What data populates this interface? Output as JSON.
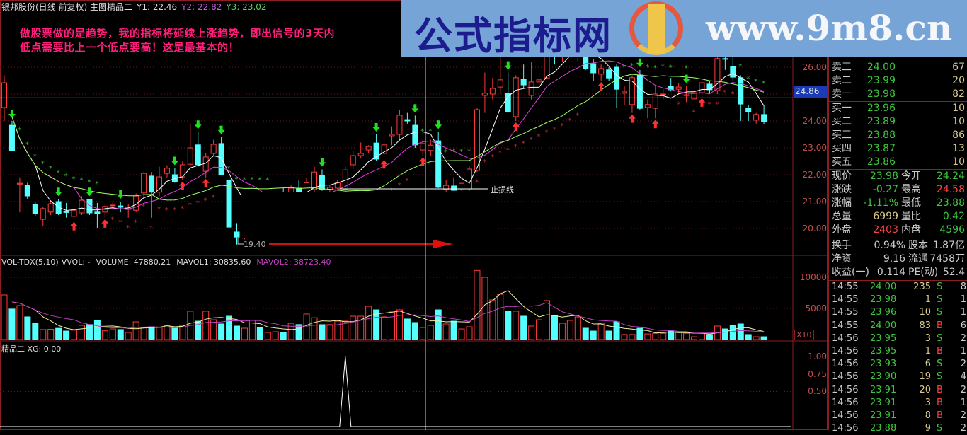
{
  "header": {
    "title": "银邦股份(日线 前复权) 主图精品二",
    "y1": "Y1: 22.46",
    "y2": "Y2: 22.82",
    "y3": "Y3: 23.02",
    "colors": {
      "y1": "#dddddd",
      "y2": "#c060d0",
      "y3": "#60d060"
    }
  },
  "annotation": {
    "line1": "做股票做的是趋势，我的指标将延续上涨趋势，即出信号的3天内",
    "line2": "低点需要比上一个低点要高！这是最基本的！",
    "color": "#ff1f7a"
  },
  "banner": {
    "site_name": "公式指标网",
    "url": "www.9m8.cn",
    "logo_text": "www.9m8.cn",
    "background": "#76a4d7"
  },
  "main_chart": {
    "price_axis": [
      "26.00",
      "24.00",
      "23.00",
      "22.00",
      "21.00",
      "20.00"
    ],
    "crosshair_price": "24.86",
    "stop_loss_label": "止损线",
    "low_label": "19.40"
  },
  "volume_panel": {
    "name": "VOL-TDX(5,10)",
    "vvol": "VVOL: -",
    "volume": "VOLUME: 47880.21",
    "mavol1": "MAVOL1: 30835.60",
    "mavol2": "MAVOL2: 38723.40",
    "axis": [
      "10000",
      "5000"
    ],
    "multiplier": "X10"
  },
  "indicator_panel": {
    "name": "精品二",
    "xg": "XG: 0.00",
    "axis": [
      "1.00",
      "0.75",
      "0.50"
    ]
  },
  "quote": {
    "asks": [
      {
        "label": "卖三",
        "price": "24.00",
        "vol": "67"
      },
      {
        "label": "卖二",
        "price": "23.99",
        "vol": "20"
      },
      {
        "label": "卖一",
        "price": "23.98",
        "vol": "82"
      }
    ],
    "bids": [
      {
        "label": "买一",
        "price": "23.96",
        "vol": "10"
      },
      {
        "label": "买二",
        "price": "23.89",
        "vol": "10"
      },
      {
        "label": "买三",
        "price": "23.88",
        "vol": "86"
      },
      {
        "label": "买四",
        "price": "23.87",
        "vol": "13"
      },
      {
        "label": "买五",
        "price": "23.86",
        "vol": "10"
      }
    ],
    "stats": [
      {
        "l1": "现价",
        "v1": "23.98",
        "c1": "g",
        "l2": "今开",
        "v2": "24.24",
        "c2": "g"
      },
      {
        "l1": "涨跌",
        "v1": "-0.27",
        "c1": "g",
        "l2": "最高",
        "v2": "24.58",
        "c2": "r"
      },
      {
        "l1": "涨幅",
        "v1": "-1.11%",
        "c1": "g",
        "l2": "最低",
        "v2": "23.88",
        "c2": "g"
      },
      {
        "l1": "总量",
        "v1": "6999",
        "c1": "y",
        "l2": "量比",
        "v2": "0.42",
        "c2": "g"
      },
      {
        "l1": "外盘",
        "v1": "2403",
        "c1": "r",
        "l2": "内盘",
        "v2": "4596",
        "c2": "g"
      }
    ],
    "fundamentals": [
      {
        "l1": "换手",
        "v1": "0.94%",
        "l2": "股本",
        "v2": "1.87亿"
      },
      {
        "l1": "净资",
        "v1": "9.16",
        "l2": "流通",
        "v2": "7458万"
      },
      {
        "l1": "收益(一)",
        "v1": "0.114",
        "l2": "PE(动)",
        "v2": "52.4"
      }
    ]
  },
  "ticks": [
    {
      "time": "14:55",
      "price": "24.00",
      "vol": "235",
      "side": "S",
      "n": "8"
    },
    {
      "time": "14:55",
      "price": "23.98",
      "vol": "1",
      "side": "S",
      "n": "1"
    },
    {
      "time": "14:55",
      "price": "23.96",
      "vol": "10",
      "side": "S",
      "n": "1"
    },
    {
      "time": "14:55",
      "price": "24.00",
      "vol": "83",
      "side": "B",
      "n": "6"
    },
    {
      "time": "14:56",
      "price": "23.95",
      "vol": "3",
      "side": "S",
      "n": "2"
    },
    {
      "time": "14:56",
      "price": "23.95",
      "vol": "1",
      "side": "B",
      "n": "1"
    },
    {
      "time": "14:56",
      "price": "23.93",
      "vol": "6",
      "side": "S",
      "n": "2"
    },
    {
      "time": "14:56",
      "price": "23.90",
      "vol": "19",
      "side": "S",
      "n": "4"
    },
    {
      "time": "14:56",
      "price": "23.91",
      "vol": "20",
      "side": "B",
      "n": "2"
    },
    {
      "time": "14:56",
      "price": "23.91",
      "vol": "3",
      "side": "B",
      "n": "1"
    },
    {
      "time": "14:56",
      "price": "23.91",
      "vol": "8",
      "side": "B",
      "n": "2"
    },
    {
      "time": "14:56",
      "price": "23.88",
      "vol": "9",
      "side": "S",
      "n": "2"
    }
  ],
  "colors": {
    "up": "#ff3b3b",
    "down": "#54ffff",
    "ma_short": "#ffffff",
    "ma_mid": "#e040e0",
    "ma_long": "#a0ff60",
    "grid": "#8b1e1e",
    "buy_signal": "#ff3030",
    "sell_signal": "#20e020"
  },
  "chart_data": {
    "type": "candlestick",
    "price_range": [
      19.0,
      27.5
    ],
    "ohlc": [
      [
        24.5,
        25.7,
        24.0,
        25.42
      ],
      [
        23.84,
        24.0,
        22.89,
        22.89
      ],
      [
        21.65,
        21.9,
        20.6,
        21.68
      ],
      [
        21.6,
        21.7,
        21.1,
        21.21
      ],
      [
        20.89,
        21.0,
        20.45,
        20.55
      ],
      [
        20.34,
        20.8,
        20.1,
        20.74
      ],
      [
        20.61,
        21.05,
        20.5,
        20.92
      ],
      [
        21.0,
        21.1,
        20.5,
        20.55
      ],
      [
        20.62,
        20.95,
        20.4,
        20.6
      ],
      [
        20.45,
        20.75,
        20.3,
        20.68
      ],
      [
        20.58,
        21.2,
        20.5,
        21.05
      ],
      [
        21.08,
        21.1,
        20.5,
        20.58
      ],
      [
        20.61,
        20.95,
        20.0,
        20.55
      ],
      [
        20.61,
        20.9,
        20.4,
        20.82
      ],
      [
        20.87,
        21.0,
        20.7,
        20.87
      ],
      [
        20.84,
        21.0,
        20.6,
        20.79
      ],
      [
        20.71,
        20.9,
        20.4,
        20.79
      ],
      [
        20.68,
        21.3,
        20.6,
        21.21
      ],
      [
        21.32,
        22.1,
        21.2,
        22.05
      ],
      [
        21.95,
        22.1,
        20.4,
        21.35
      ],
      [
        21.35,
        22.3,
        21.2,
        21.92
      ],
      [
        22.05,
        22.35,
        21.9,
        22.24
      ],
      [
        22.0,
        22.25,
        21.7,
        21.74
      ],
      [
        21.92,
        22.5,
        21.8,
        22.37
      ],
      [
        22.39,
        23.9,
        22.3,
        23.0
      ],
      [
        23.11,
        23.6,
        22.3,
        22.37
      ],
      [
        22.13,
        22.8,
        21.9,
        22.66
      ],
      [
        22.79,
        23.3,
        22.7,
        23.13
      ],
      [
        23.16,
        23.4,
        22.0,
        22.0
      ],
      [
        21.79,
        21.9,
        20.05,
        20.05
      ],
      [
        19.87,
        20.2,
        19.4,
        19.68
      ],
      [
        19.7,
        20.3,
        19.6,
        20.2
      ],
      [
        20.2,
        20.8,
        20.0,
        20.6
      ],
      [
        20.6,
        21.0,
        20.3,
        20.5
      ],
      [
        20.5,
        21.1,
        20.4,
        20.9
      ],
      [
        20.9,
        21.3,
        20.7,
        21.2
      ],
      [
        21.2,
        21.5,
        20.9,
        21.0
      ],
      [
        21.0,
        21.6,
        20.9,
        21.5
      ],
      [
        21.5,
        21.8,
        21.2,
        21.3
      ],
      [
        21.3,
        21.9,
        21.2,
        21.7
      ],
      [
        21.45,
        22.3,
        21.3,
        22.1
      ],
      [
        21.98,
        22.2,
        21.4,
        21.45
      ],
      [
        21.45,
        21.6,
        21.3,
        21.53
      ],
      [
        21.5,
        21.8,
        21.4,
        21.7
      ],
      [
        21.45,
        22.3,
        21.4,
        22.18
      ],
      [
        22.37,
        22.9,
        22.2,
        22.71
      ],
      [
        22.71,
        23.2,
        22.6,
        22.79
      ],
      [
        22.92,
        23.1,
        22.8,
        23.05
      ],
      [
        23.18,
        23.5,
        22.5,
        22.58
      ],
      [
        22.79,
        23.3,
        22.6,
        23.11
      ],
      [
        23.45,
        23.8,
        23.1,
        23.5
      ],
      [
        23.5,
        24.4,
        23.3,
        24.21
      ],
      [
        24.05,
        24.3,
        23.9,
        24.0
      ],
      [
        23.84,
        24.2,
        23.0,
        23.11
      ],
      [
        22.92,
        23.3,
        22.7,
        23.16
      ],
      [
        22.9,
        23.3,
        22.7,
        23.1
      ],
      [
        23.26,
        23.6,
        21.5,
        21.53
      ],
      [
        21.45,
        21.8,
        21.3,
        21.6
      ],
      [
        21.58,
        21.9,
        21.4,
        21.42
      ],
      [
        21.47,
        21.7,
        21.4,
        21.68
      ],
      [
        21.47,
        22.3,
        21.4,
        22.21
      ],
      [
        22.16,
        24.5,
        22.1,
        24.42
      ],
      [
        24.95,
        25.8,
        24.3,
        25.03
      ],
      [
        25.0,
        25.6,
        24.8,
        25.21
      ],
      [
        25.26,
        26.6,
        25.0,
        25.53
      ],
      [
        25.03,
        25.8,
        24.3,
        24.34
      ],
      [
        24.16,
        25.7,
        24.0,
        25.61
      ],
      [
        25.55,
        26.1,
        25.2,
        25.34
      ],
      [
        24.95,
        26.2,
        24.8,
        25.45
      ],
      [
        25.45,
        26.0,
        25.2,
        25.53
      ],
      [
        25.6,
        26.6,
        25.5,
        26.4
      ],
      [
        26.8,
        27.0,
        26.1,
        26.4
      ],
      [
        26.4,
        27.0,
        26.2,
        26.8
      ],
      [
        26.8,
        27.2,
        26.5,
        27.0
      ],
      [
        26.5,
        27.1,
        26.2,
        26.9
      ],
      [
        26.4,
        26.9,
        25.9,
        25.95
      ],
      [
        26.13,
        26.3,
        25.5,
        25.79
      ],
      [
        25.74,
        26.1,
        25.5,
        25.95
      ],
      [
        25.9,
        26.0,
        25.5,
        25.6
      ],
      [
        26.0,
        26.1,
        24.5,
        25.18
      ],
      [
        25.03,
        25.3,
        24.6,
        25.08
      ],
      [
        24.61,
        25.7,
        24.3,
        25.61
      ],
      [
        25.71,
        25.9,
        24.4,
        24.47
      ],
      [
        24.5,
        24.8,
        24.1,
        24.61
      ],
      [
        24.47,
        25.3,
        24.1,
        25.0
      ],
      [
        24.98,
        25.2,
        24.8,
        25.0
      ],
      [
        25.29,
        25.6,
        25.1,
        25.16
      ],
      [
        25.18,
        25.4,
        25.0,
        25.26
      ],
      [
        24.95,
        25.3,
        24.7,
        24.97
      ],
      [
        24.82,
        25.3,
        24.7,
        25.05
      ],
      [
        25.05,
        25.5,
        24.9,
        25.42
      ],
      [
        25.37,
        25.5,
        25.0,
        25.16
      ],
      [
        25.13,
        26.4,
        25.0,
        26.32
      ],
      [
        26.32,
        26.8,
        25.9,
        26.3
      ],
      [
        26.03,
        26.5,
        25.5,
        25.63
      ],
      [
        25.61,
        25.7,
        24.0,
        24.63
      ],
      [
        24.47,
        24.6,
        24.0,
        24.34
      ],
      [
        24.03,
        24.3,
        23.9,
        24.24
      ],
      [
        24.24,
        24.58,
        23.88,
        23.98
      ]
    ],
    "volume": [
      7160,
      4900,
      5450,
      3640,
      2600,
      1600,
      1650,
      1800,
      1360,
      1500,
      2270,
      2400,
      3070,
      1400,
      1700,
      1600,
      1140,
      2840,
      1930,
      2050,
      1930,
      2270,
      2050,
      2270,
      4550,
      2950,
      4550,
      3180,
      2500,
      3750,
      2160,
      1820,
      3070,
      1930,
      1140,
      1250,
      1140,
      2600,
      2400,
      4100,
      3500,
      2400,
      2400,
      2950,
      2950,
      3750,
      3750,
      5340,
      4770,
      3640,
      4430,
      4770,
      3300,
      2730,
      1930,
      2270,
      4770,
      2500,
      2950,
      1700,
      2050,
      11100,
      10000,
      6360,
      7270,
      4550,
      4550,
      3750,
      2160,
      3180,
      6250,
      3860,
      2610,
      3070,
      3640,
      1820,
      1360,
      2610,
      1360,
      2840,
      800,
      800,
      1820,
      900,
      1000,
      1000,
      1360,
      1250,
      1000,
      450,
      1000,
      800,
      2160,
      1700,
      2270,
      2500,
      800,
      450,
      450
    ],
    "volume_range": [
      0,
      11500
    ],
    "sell_signals": [
      1,
      7,
      11,
      15,
      22,
      25,
      28,
      41,
      48,
      53,
      56,
      65,
      82,
      88,
      94
    ],
    "buy_signals": [
      9,
      13,
      23,
      26,
      49,
      54,
      66,
      77,
      81,
      84,
      90
    ],
    "xg_spike_index": 44,
    "xg_range": [
      0,
      1
    ],
    "stop_loss_price": 21.5,
    "crosshair_index": 54
  }
}
